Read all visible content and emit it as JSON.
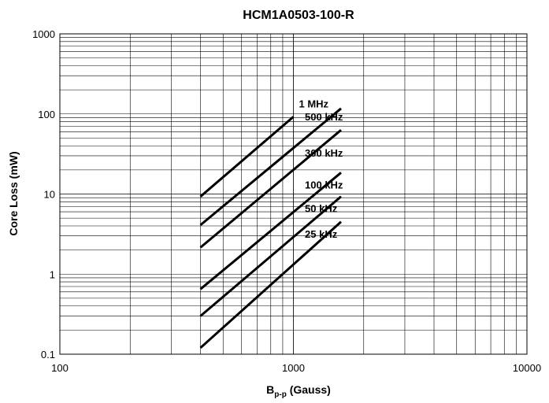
{
  "chart_data": {
    "type": "line",
    "title": "HCM1A0503-100-R",
    "xlabel": {
      "main": "B",
      "sub": "p-p",
      "rest": " (Gauss)"
    },
    "ylabel": "Core Loss (mW)",
    "xscale": "log",
    "yscale": "log",
    "xlim": [
      100,
      10000
    ],
    "ylim": [
      0.1,
      1000
    ],
    "grid": true,
    "legend": "inline labels at line ends",
    "xticks": [
      "100",
      "1000",
      "10000"
    ],
    "yticks": [
      "0.1",
      "1",
      "10",
      "100",
      "1000"
    ],
    "series": [
      {
        "name": "1 MHz",
        "x": [
          400,
          1000
        ],
        "y": [
          9.3,
          92
        ]
      },
      {
        "name": "500 kHz",
        "x": [
          400,
          1600
        ],
        "y": [
          4.1,
          117
        ]
      },
      {
        "name": "300 kHz",
        "x": [
          400,
          1600
        ],
        "y": [
          2.15,
          63
        ]
      },
      {
        "name": "100 kHz",
        "x": [
          400,
          1600
        ],
        "y": [
          0.65,
          18.5
        ]
      },
      {
        "name": "50 kHz",
        "x": [
          400,
          1600
        ],
        "y": [
          0.3,
          9.3
        ]
      },
      {
        "name": "25 kHz",
        "x": [
          400,
          1600
        ],
        "y": [
          0.12,
          4.5
        ]
      }
    ]
  }
}
